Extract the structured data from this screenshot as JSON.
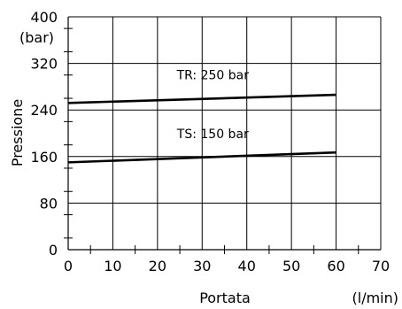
{
  "chart_data": {
    "type": "line",
    "title": "",
    "xlabel": "Portata",
    "ylabel": "Pressione",
    "x_unit": "(l/min)",
    "y_unit": "(bar)",
    "xlim": [
      0,
      70
    ],
    "ylim": [
      0,
      400
    ],
    "x_ticks": [
      0,
      10,
      20,
      30,
      40,
      50,
      60,
      70
    ],
    "y_ticks": [
      0,
      80,
      160,
      240,
      320,
      400
    ],
    "grid": true,
    "series": [
      {
        "name": "TR: 250 bar",
        "x": [
          0,
          60
        ],
        "y": [
          252,
          266
        ],
        "color": "#000000"
      },
      {
        "name": "TS: 150 bar",
        "x": [
          0,
          60
        ],
        "y": [
          150,
          167
        ],
        "color": "#000000"
      }
    ]
  }
}
